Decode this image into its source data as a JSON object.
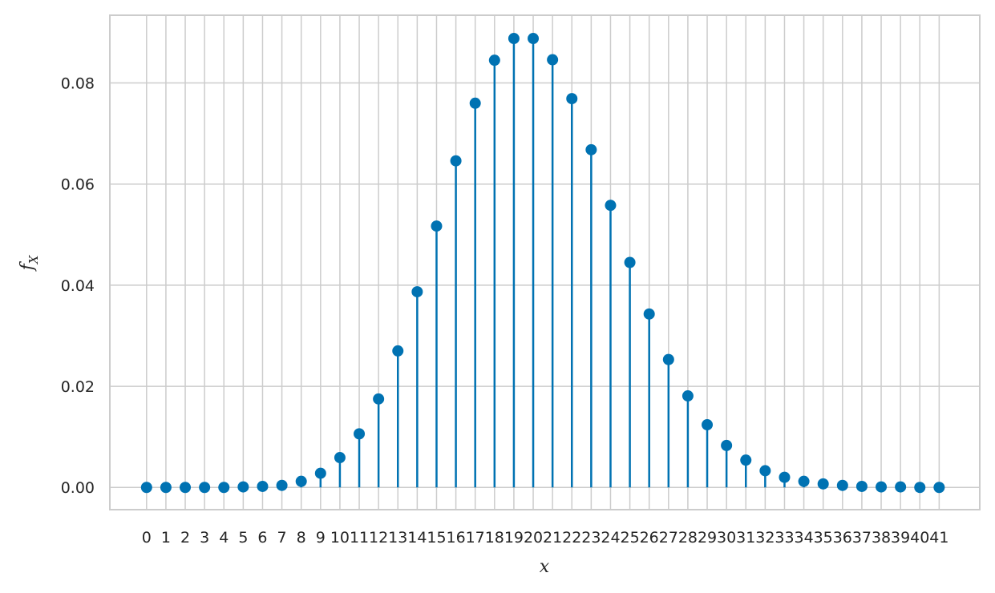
{
  "chart_data": {
    "type": "stem",
    "xlabel": "x",
    "ylabel": {
      "main": "f",
      "sub": "X"
    },
    "x": [
      0,
      1,
      2,
      3,
      4,
      5,
      6,
      7,
      8,
      9,
      10,
      11,
      12,
      13,
      14,
      15,
      16,
      17,
      18,
      19,
      20,
      21,
      22,
      23,
      24,
      25,
      26,
      27,
      28,
      29,
      30,
      31,
      32,
      33,
      34,
      35,
      36,
      37,
      38,
      39,
      40,
      41
    ],
    "values": [
      0.0,
      0.0,
      0.0,
      0.0,
      0.0,
      0.0001,
      0.0002,
      0.0004,
      0.0012,
      0.0028,
      0.0059,
      0.0106,
      0.0175,
      0.027,
      0.0387,
      0.0517,
      0.0646,
      0.076,
      0.0845,
      0.0888,
      0.0888,
      0.0846,
      0.0769,
      0.0668,
      0.0558,
      0.0445,
      0.0343,
      0.0253,
      0.0181,
      0.0124,
      0.0083,
      0.0054,
      0.0033,
      0.002,
      0.0012,
      0.0007,
      0.0004,
      0.0002,
      0.0001,
      0.0001,
      0.0,
      0.0
    ],
    "yticks": [
      "0.00",
      "0.02",
      "0.04",
      "0.06",
      "0.08"
    ],
    "ylim": [
      -0.0044,
      0.0934
    ],
    "xlim": [
      -1.9,
      43.1
    ],
    "grid": true,
    "color": "#0072b2"
  }
}
